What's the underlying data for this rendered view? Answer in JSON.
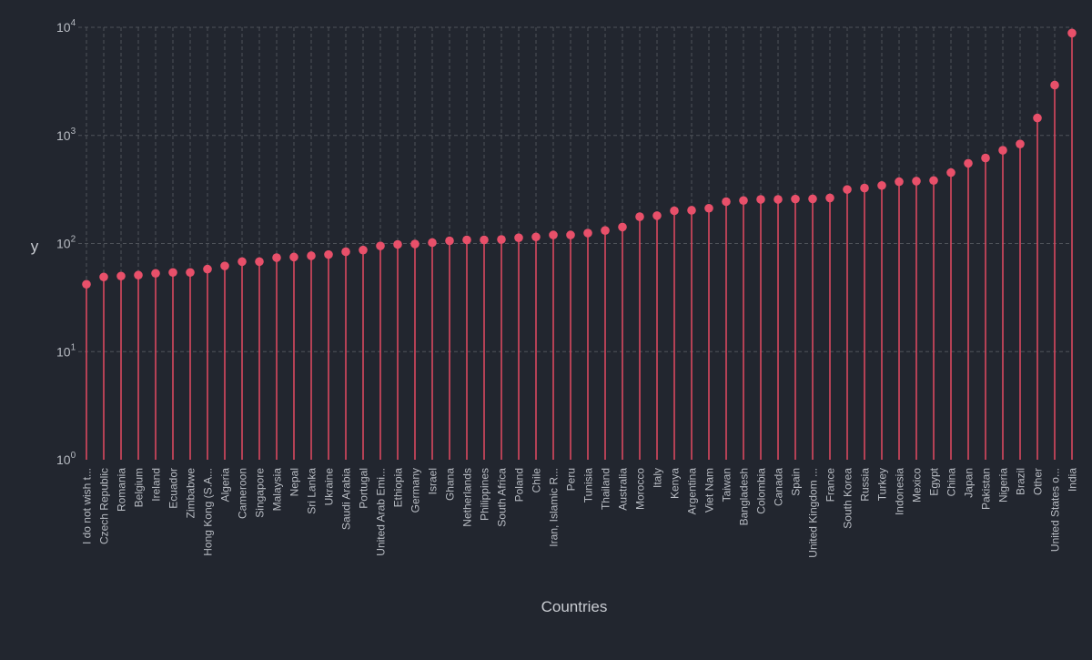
{
  "colors": {
    "background": "#22262f",
    "marker": "#e8506a",
    "stem": "#d9485f",
    "grid": "#4f535a",
    "text": "#b8bcc3",
    "label": "#c9ccd2"
  },
  "chart_data": {
    "type": "lollipop",
    "title": "",
    "xlabel": "Countries",
    "ylabel": "y",
    "yscale": "log",
    "ylim": [
      1,
      10000
    ],
    "grid": true,
    "y_ticks": [
      {
        "value": 1,
        "base": "10",
        "exp": "0"
      },
      {
        "value": 10,
        "base": "10",
        "exp": "1"
      },
      {
        "value": 100,
        "base": "10",
        "exp": "2"
      },
      {
        "value": 1000,
        "base": "10",
        "exp": "3"
      },
      {
        "value": 10000,
        "base": "10",
        "exp": "4"
      }
    ],
    "categories": [
      "I do not wish t...",
      "Czech Republic",
      "Romania",
      "Belgium",
      "Ireland",
      "Ecuador",
      "Zimbabwe",
      "Hong Kong (S.A...",
      "Algeria",
      "Cameroon",
      "Singapore",
      "Malaysia",
      "Nepal",
      "Sri Lanka",
      "Ukraine",
      "Saudi Arabia",
      "Portugal",
      "United Arab Emi...",
      "Ethiopia",
      "Germany",
      "Israel",
      "Ghana",
      "Netherlands",
      "Philippines",
      "South Africa",
      "Poland",
      "Chile",
      "Iran, Islamic R...",
      "Peru",
      "Tunisia",
      "Thailand",
      "Australia",
      "Morocco",
      "Italy",
      "Kenya",
      "Argentina",
      "Viet Nam",
      "Taiwan",
      "Bangladesh",
      "Colombia",
      "Canada",
      "Spain",
      "United Kingdom ...",
      "France",
      "South Korea",
      "Russia",
      "Turkey",
      "Indonesia",
      "Mexico",
      "Egypt",
      "China",
      "Japan",
      "Pakistan",
      "Nigeria",
      "Brazil",
      "Other",
      "United States o...",
      "India"
    ],
    "values": [
      42,
      49,
      50,
      51,
      53,
      54,
      54,
      58,
      62,
      68,
      68,
      74,
      75,
      77,
      79,
      84,
      87,
      95,
      98,
      99,
      102,
      106,
      108,
      108,
      109,
      113,
      115,
      120,
      120,
      125,
      132,
      142,
      177,
      181,
      201,
      203,
      212,
      244,
      250,
      256,
      256,
      258,
      259,
      264,
      316,
      326,
      344,
      373,
      378,
      383,
      453,
      552,
      618,
      729,
      833,
      1450,
      2920,
      8850
    ]
  }
}
